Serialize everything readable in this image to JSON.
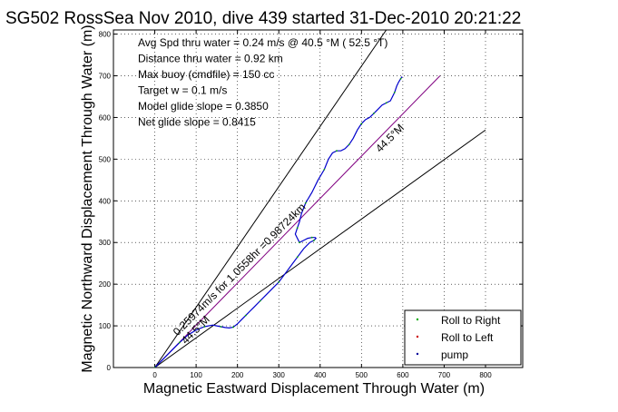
{
  "chart_data": {
    "type": "line",
    "title": "SG502 RossSea Nov 2010, dive 439 started 31-Dec-2010 20:21:22",
    "xlabel": "Magnetic Eastward Displacement Through Water (m)",
    "ylabel": "Magnetic Northward Displacement Through Water (m)",
    "xlim": [
      -100,
      890
    ],
    "ylim": [
      0,
      810
    ],
    "xticks": [
      0,
      100,
      200,
      300,
      400,
      500,
      600,
      700,
      800
    ],
    "yticks": [
      0,
      100,
      200,
      300,
      400,
      500,
      600,
      700,
      800
    ],
    "grid": true,
    "legend_position": "bottom-right",
    "info_lines": [
      "Avg Spd thru water =  0.24 m/s @  40.5   °M ( 52.5 °T)",
      "Distance thru water =  0.92 km",
      "Max buoy (cmdfile) = 150 cc",
      "Target w = 0.1 m/s",
      "Model glide slope = 0.3850",
      "Net glide slope = 0.8415"
    ],
    "reference_lines": [
      {
        "name": "upper bound",
        "color": "#000000",
        "x": [
          0,
          560
        ],
        "y": [
          0,
          810
        ]
      },
      {
        "name": "lower bound",
        "color": "#000000",
        "x": [
          0,
          800
        ],
        "y": [
          0,
          570
        ]
      },
      {
        "name": "track heading",
        "color": "#800080",
        "x": [
          0,
          690
        ],
        "y": [
          0,
          700
        ]
      }
    ],
    "annotations": [
      {
        "text": "0.25974m/s for 1.0558hr =0.98724km",
        "x": 55,
        "y": 75,
        "rotation_deg": -45
      },
      {
        "text": "44.5°M",
        "x": 75,
        "y": 55,
        "rotation_deg": -45
      },
      {
        "text": "44.5°M",
        "x": 545,
        "y": 515,
        "rotation_deg": -45
      }
    ],
    "series": [
      {
        "name": "track",
        "color": "#0000cc",
        "x": [
          0,
          20,
          40,
          60,
          80,
          100,
          120,
          140,
          150,
          160,
          170,
          180,
          190,
          200,
          210,
          220,
          230,
          240,
          255,
          270,
          285,
          300,
          315,
          330,
          345,
          360,
          375,
          385,
          390,
          388,
          380,
          370,
          360,
          350,
          345,
          340,
          345,
          350,
          355,
          365,
          380,
          395,
          410,
          420,
          430,
          440,
          450,
          460,
          470,
          480,
          490,
          500,
          510,
          520,
          530,
          540,
          550,
          560,
          570,
          575,
          580,
          585,
          590,
          595,
          598
        ],
        "y": [
          0,
          20,
          40,
          60,
          78,
          90,
          98,
          102,
          100,
          98,
          96,
          95,
          97,
          105,
          115,
          125,
          135,
          145,
          160,
          175,
          190,
          205,
          225,
          245,
          265,
          285,
          300,
          305,
          310,
          312,
          312,
          310,
          305,
          300,
          310,
          320,
          335,
          350,
          370,
          395,
          420,
          450,
          475,
          500,
          515,
          520,
          520,
          525,
          535,
          550,
          570,
          585,
          595,
          600,
          610,
          620,
          630,
          635,
          640,
          650,
          660,
          675,
          685,
          693,
          698
        ]
      }
    ],
    "legend": [
      {
        "label": "Roll to Right",
        "color": "#00aa00"
      },
      {
        "label": "Roll to Left",
        "color": "#cc0000"
      },
      {
        "label": "pump",
        "color": "#000099"
      }
    ]
  }
}
